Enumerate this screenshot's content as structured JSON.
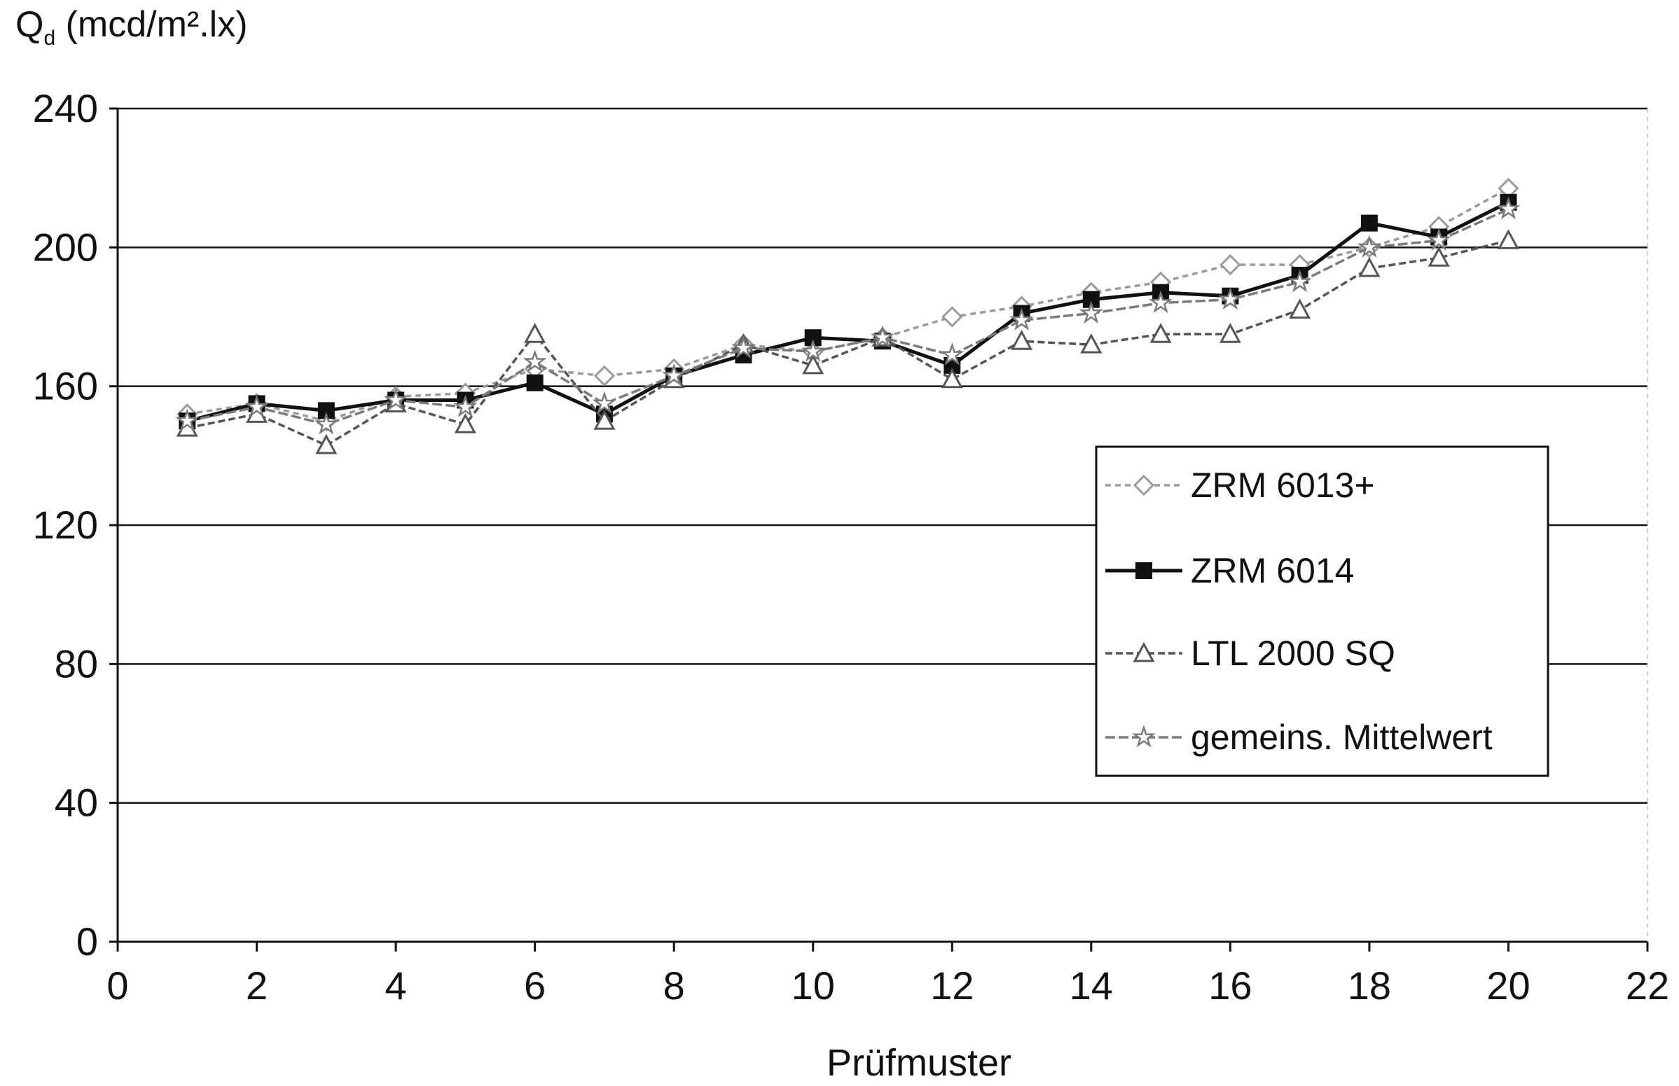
{
  "chart_data": {
    "type": "line",
    "ylabel_main": "Q",
    "ylabel_sub": "d",
    "ylabel_unit": " (mcd/m².lx)",
    "xlabel": "Prüfmuster",
    "xlim": [
      0,
      22
    ],
    "ylim": [
      0,
      240
    ],
    "xticks": [
      0,
      2,
      4,
      6,
      8,
      10,
      12,
      14,
      16,
      18,
      20,
      22
    ],
    "yticks": [
      0,
      40,
      80,
      120,
      160,
      200,
      240
    ],
    "grid": "horizontal",
    "legend_position": "right",
    "x": [
      1,
      2,
      3,
      4,
      5,
      6,
      7,
      8,
      9,
      10,
      11,
      12,
      13,
      14,
      15,
      16,
      17,
      18,
      19,
      20
    ],
    "series": [
      {
        "name": "ZRM 6013+",
        "values": [
          152,
          155,
          150,
          157,
          158,
          165,
          163,
          165,
          172,
          170,
          174,
          180,
          183,
          187,
          190,
          195,
          195,
          200,
          206,
          217
        ],
        "color": "#9a9a9a",
        "marker": "diamond",
        "dash": "8,6"
      },
      {
        "name": "ZRM 6014",
        "values": [
          150,
          155,
          153,
          156,
          156,
          161,
          152,
          163,
          169,
          174,
          173,
          166,
          181,
          185,
          187,
          186,
          192,
          207,
          203,
          213
        ],
        "color": "#111111",
        "marker": "square",
        "dash": ""
      },
      {
        "name": "LTL 2000 SQ",
        "values": [
          148,
          152,
          143,
          155,
          149,
          175,
          150,
          162,
          172,
          166,
          174,
          162,
          173,
          172,
          175,
          175,
          182,
          194,
          197,
          202
        ],
        "color": "#555555",
        "marker": "triangle",
        "dash": "10,5"
      },
      {
        "name": "gemeins. Mittelwert",
        "values": [
          150,
          154,
          149,
          156,
          154,
          167,
          155,
          163,
          171,
          170,
          174,
          169,
          179,
          181,
          184,
          185,
          190,
          200,
          202,
          211
        ],
        "color": "#7a7a7a",
        "marker": "star",
        "dash": "14,5"
      }
    ]
  }
}
